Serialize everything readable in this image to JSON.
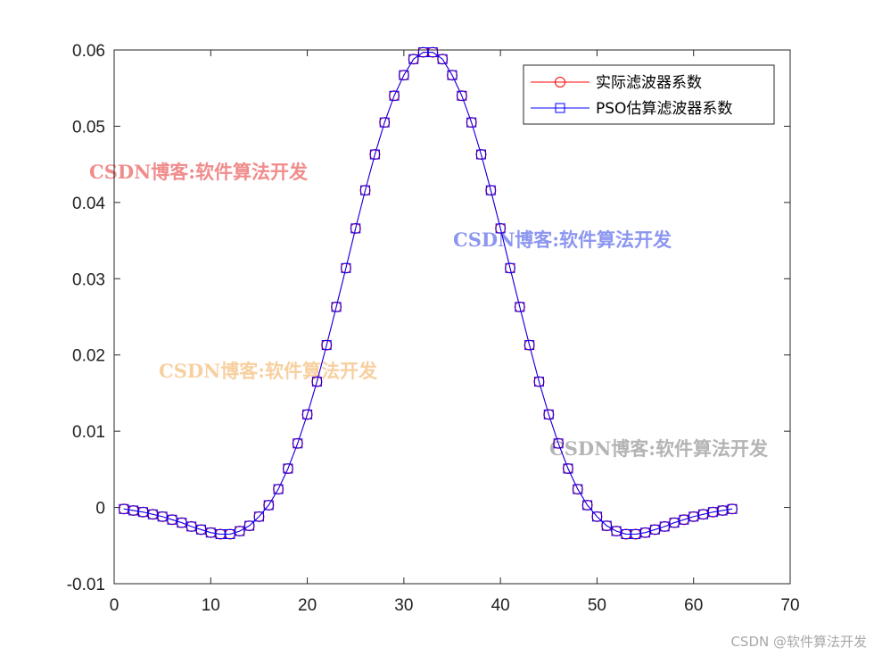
{
  "chart_data": {
    "type": "line",
    "xlim": [
      0,
      70
    ],
    "ylim": [
      -0.01,
      0.06
    ],
    "x_ticks": [
      0,
      10,
      20,
      30,
      40,
      50,
      60,
      70
    ],
    "x_tick_labels": [
      "0",
      "10",
      "20",
      "30",
      "40",
      "50",
      "60",
      "70"
    ],
    "y_ticks": [
      -0.01,
      0,
      0.01,
      0.02,
      0.03,
      0.04,
      0.05,
      0.06
    ],
    "y_tick_labels": [
      "-0.01",
      "0",
      "0.01",
      "0.02",
      "0.03",
      "0.04",
      "0.05",
      "0.06"
    ],
    "grid": false,
    "legend_position": "top-right",
    "x": [
      1,
      2,
      3,
      4,
      5,
      6,
      7,
      8,
      9,
      10,
      11,
      12,
      13,
      14,
      15,
      16,
      17,
      18,
      19,
      20,
      21,
      22,
      23,
      24,
      25,
      26,
      27,
      28,
      29,
      30,
      31,
      32,
      33,
      34,
      35,
      36,
      37,
      38,
      39,
      40,
      41,
      42,
      43,
      44,
      45,
      46,
      47,
      48,
      49,
      50,
      51,
      52,
      53,
      54,
      55,
      56,
      57,
      58,
      59,
      60,
      61,
      62,
      63,
      64
    ],
    "series": [
      {
        "name": "实际滤波器系数",
        "color": "#ff0000",
        "marker": "circle",
        "values": [
          -0.0002,
          -0.0004,
          -0.0006,
          -0.0009,
          -0.0012,
          -0.0016,
          -0.002,
          -0.0025,
          -0.0029,
          -0.0033,
          -0.0035,
          -0.0035,
          -0.0031,
          -0.0024,
          -0.0012,
          0.0003,
          0.0024,
          0.0051,
          0.0084,
          0.0122,
          0.0165,
          0.0213,
          0.0263,
          0.0314,
          0.0366,
          0.0416,
          0.0463,
          0.0505,
          0.054,
          0.0567,
          0.0588,
          0.0597,
          0.0597,
          0.0588,
          0.0567,
          0.054,
          0.0505,
          0.0463,
          0.0416,
          0.0366,
          0.0314,
          0.0263,
          0.0213,
          0.0165,
          0.0122,
          0.0084,
          0.0051,
          0.0024,
          0.0003,
          -0.0012,
          -0.0024,
          -0.0031,
          -0.0035,
          -0.0035,
          -0.0033,
          -0.0029,
          -0.0025,
          -0.002,
          -0.0016,
          -0.0012,
          -0.0009,
          -0.0006,
          -0.0004,
          -0.0002
        ]
      },
      {
        "name": "PSO估算滤波器系数",
        "color": "#0000ff",
        "marker": "square",
        "values": [
          -0.0002,
          -0.0004,
          -0.0006,
          -0.0009,
          -0.0012,
          -0.0016,
          -0.002,
          -0.0025,
          -0.0029,
          -0.0033,
          -0.0035,
          -0.0035,
          -0.0031,
          -0.0024,
          -0.0012,
          0.0003,
          0.0024,
          0.0051,
          0.0084,
          0.0122,
          0.0165,
          0.0213,
          0.0263,
          0.0314,
          0.0366,
          0.0416,
          0.0463,
          0.0505,
          0.054,
          0.0567,
          0.0588,
          0.0597,
          0.0597,
          0.0588,
          0.0567,
          0.054,
          0.0505,
          0.0463,
          0.0416,
          0.0366,
          0.0314,
          0.0263,
          0.0213,
          0.0165,
          0.0122,
          0.0084,
          0.0051,
          0.0024,
          0.0003,
          -0.0012,
          -0.0024,
          -0.0031,
          -0.0035,
          -0.0035,
          -0.0033,
          -0.0029,
          -0.0025,
          -0.002,
          -0.0016,
          -0.0012,
          -0.0009,
          -0.0006,
          -0.0004,
          -0.0002
        ]
      }
    ],
    "watermarks": [
      {
        "text": "CSDN博客:软件算法开发",
        "color": "#f08c8c"
      },
      {
        "text": "CSDN博客:软件算法开发",
        "color": "#8c96f0"
      },
      {
        "text": "CSDN博客:软件算法开发",
        "color": "#f8d0a0"
      },
      {
        "text": "CSDN博客:软件算法开发",
        "color": "#b4b4b4"
      }
    ]
  },
  "footer_watermark": "CSDN @软件算法开发"
}
